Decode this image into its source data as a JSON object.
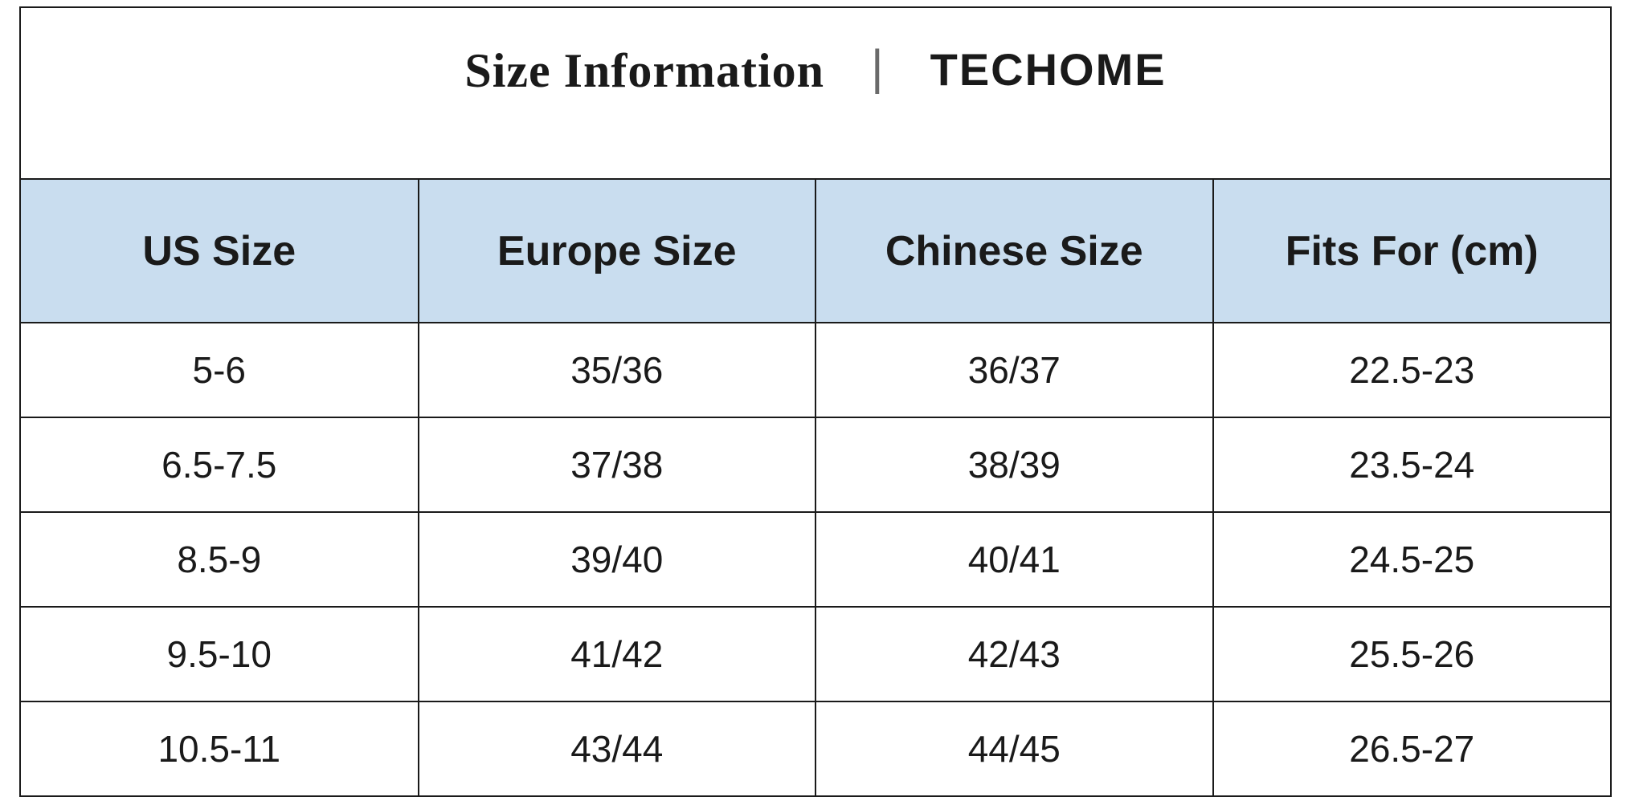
{
  "header": {
    "title_left": "Size Information",
    "separator": "|",
    "title_right": "TECHOME"
  },
  "table": {
    "columns": [
      "US Size",
      "Europe Size",
      "Chinese Size",
      "Fits For (cm)"
    ],
    "header_bg": "#c9ddef",
    "border_color": "#1a1a1a",
    "header_fontsize": 52,
    "cell_fontsize": 46,
    "rows": [
      [
        "5-6",
        "35/36",
        "36/37",
        "22.5-23"
      ],
      [
        "6.5-7.5",
        "37/38",
        "38/39",
        "23.5-24"
      ],
      [
        "8.5-9",
        "39/40",
        "40/41",
        "24.5-25"
      ],
      [
        "9.5-10",
        "41/42",
        "42/43",
        "25.5-26"
      ],
      [
        "10.5-11",
        "43/44",
        "44/45",
        "26.5-27"
      ]
    ]
  }
}
